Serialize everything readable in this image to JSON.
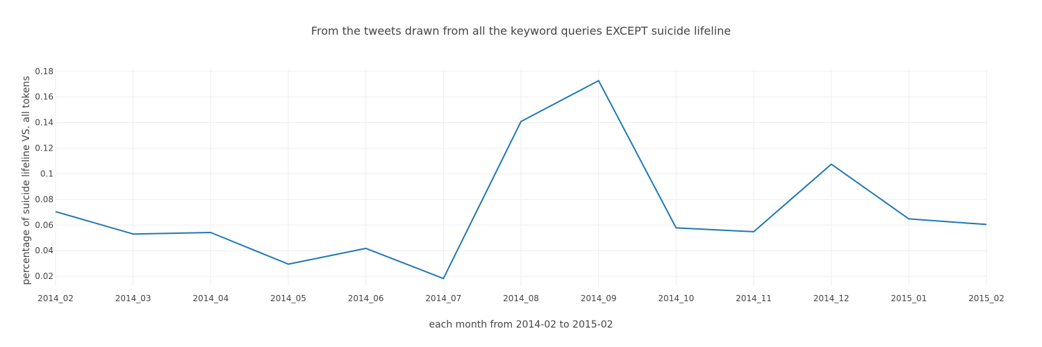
{
  "chart_data": {
    "type": "line",
    "title": "From the tweets drawn from all the keyword queries EXCEPT suicide lifeline",
    "xlabel": "each month from 2014-02 to 2015-02",
    "ylabel": "percentage of suicide lifeline VS. all tokens",
    "categories": [
      "2014_02",
      "2014_03",
      "2014_04",
      "2014_05",
      "2014_06",
      "2014_07",
      "2014_08",
      "2014_09",
      "2014_10",
      "2014_11",
      "2014_12",
      "2015_01",
      "2015_02"
    ],
    "yticks": [
      "0.02",
      "0.04",
      "0.06",
      "0.08",
      "0.1",
      "0.12",
      "0.14",
      "0.16",
      "0.18"
    ],
    "ylim": [
      0.0125,
      0.1815
    ],
    "series": [
      {
        "values": [
          0.0705,
          0.053,
          0.0542,
          0.0295,
          0.0418,
          0.0183,
          0.1408,
          0.1727,
          0.0578,
          0.0548,
          0.1075,
          0.0648,
          0.0605
        ],
        "color": "#1f77b4"
      }
    ],
    "grid": true,
    "legend": "none"
  }
}
